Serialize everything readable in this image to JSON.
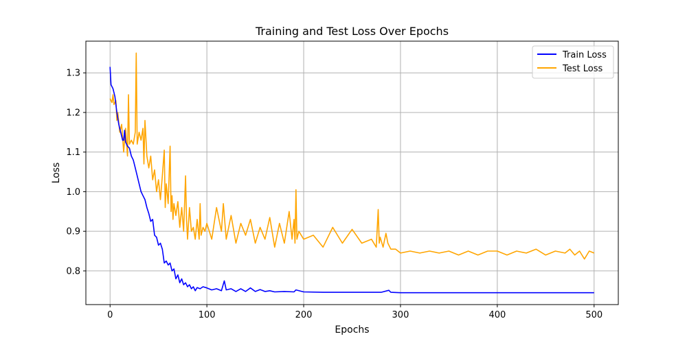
{
  "chart_data": {
    "type": "line",
    "title": "Training and Test Loss Over Epochs",
    "xlabel": "Epochs",
    "ylabel": "Loss",
    "xlim": [
      -25,
      525
    ],
    "ylim": [
      0.715,
      1.38
    ],
    "xticks": [
      0,
      100,
      200,
      300,
      400,
      500
    ],
    "yticks": [
      0.8,
      0.9,
      1.0,
      1.1,
      1.2,
      1.3
    ],
    "xtick_labels": [
      "0",
      "100",
      "200",
      "300",
      "400",
      "500"
    ],
    "ytick_labels": [
      "0.8",
      "0.9",
      "1.0",
      "1.1",
      "1.2",
      "1.3"
    ],
    "grid": true,
    "legend_position": "top-right",
    "series": [
      {
        "name": "Train Loss",
        "color": "#0000ff",
        "x": [
          0,
          1,
          3,
          5,
          7,
          9,
          11,
          13,
          14,
          15,
          16,
          18,
          20,
          22,
          24,
          26,
          28,
          30,
          32,
          34,
          36,
          38,
          40,
          42,
          44,
          46,
          48,
          50,
          52,
          54,
          56,
          58,
          60,
          62,
          64,
          66,
          68,
          70,
          72,
          74,
          76,
          78,
          80,
          82,
          84,
          86,
          88,
          90,
          93,
          96,
          100,
          105,
          110,
          115,
          118,
          120,
          125,
          130,
          135,
          140,
          145,
          150,
          155,
          160,
          165,
          170,
          180,
          190,
          192,
          200,
          220,
          240,
          260,
          280,
          288,
          290,
          300,
          320,
          350,
          380,
          400,
          420,
          450,
          480,
          500
        ],
        "y": [
          1.315,
          1.27,
          1.26,
          1.24,
          1.2,
          1.17,
          1.15,
          1.13,
          1.13,
          1.155,
          1.125,
          1.115,
          1.11,
          1.09,
          1.08,
          1.06,
          1.04,
          1.02,
          1.0,
          0.99,
          0.98,
          0.96,
          0.945,
          0.925,
          0.93,
          0.89,
          0.885,
          0.865,
          0.87,
          0.855,
          0.82,
          0.825,
          0.815,
          0.82,
          0.8,
          0.805,
          0.78,
          0.79,
          0.77,
          0.78,
          0.765,
          0.77,
          0.76,
          0.765,
          0.755,
          0.76,
          0.75,
          0.758,
          0.755,
          0.76,
          0.757,
          0.752,
          0.755,
          0.75,
          0.775,
          0.752,
          0.755,
          0.748,
          0.755,
          0.748,
          0.757,
          0.748,
          0.753,
          0.748,
          0.75,
          0.747,
          0.748,
          0.747,
          0.752,
          0.747,
          0.746,
          0.746,
          0.746,
          0.746,
          0.751,
          0.746,
          0.745,
          0.745,
          0.745,
          0.745,
          0.745,
          0.745,
          0.745,
          0.745,
          0.745
        ]
      },
      {
        "name": "Test Loss",
        "color": "#ffa500",
        "x": [
          0,
          2,
          3,
          4,
          6,
          7,
          8,
          10,
          12,
          14,
          16,
          18,
          19,
          20,
          22,
          24,
          26,
          27,
          28,
          30,
          32,
          34,
          35,
          36,
          38,
          40,
          42,
          44,
          46,
          48,
          50,
          52,
          54,
          56,
          57,
          58,
          60,
          62,
          63,
          64,
          65,
          66,
          68,
          70,
          72,
          74,
          76,
          78,
          79,
          80,
          82,
          84,
          86,
          88,
          90,
          92,
          93,
          94,
          96,
          98,
          100,
          105,
          110,
          115,
          117,
          120,
          125,
          130,
          135,
          140,
          145,
          150,
          155,
          160,
          165,
          170,
          175,
          180,
          185,
          188,
          190,
          191,
          192,
          193,
          195,
          200,
          210,
          220,
          230,
          240,
          250,
          260,
          270,
          275,
          277,
          278,
          279,
          282,
          285,
          287,
          290,
          295,
          300,
          310,
          320,
          330,
          340,
          350,
          360,
          370,
          380,
          390,
          400,
          410,
          420,
          430,
          440,
          450,
          460,
          470,
          475,
          480,
          485,
          490,
          495,
          500
        ],
        "y": [
          1.235,
          1.225,
          1.245,
          1.22,
          1.23,
          1.18,
          1.2,
          1.15,
          1.17,
          1.1,
          1.16,
          1.09,
          1.245,
          1.12,
          1.13,
          1.12,
          1.15,
          1.35,
          1.12,
          1.15,
          1.13,
          1.16,
          1.07,
          1.18,
          1.09,
          1.06,
          1.09,
          1.03,
          1.055,
          1.0,
          1.03,
          0.98,
          1.04,
          1.105,
          0.96,
          1.02,
          0.97,
          1.115,
          0.95,
          0.99,
          0.93,
          0.97,
          0.94,
          0.975,
          0.91,
          0.96,
          0.9,
          1.04,
          0.93,
          0.88,
          0.96,
          0.9,
          0.91,
          0.88,
          0.93,
          0.88,
          0.97,
          0.89,
          0.91,
          0.9,
          0.92,
          0.88,
          0.96,
          0.9,
          0.97,
          0.88,
          0.94,
          0.87,
          0.92,
          0.89,
          0.93,
          0.87,
          0.91,
          0.88,
          0.935,
          0.86,
          0.92,
          0.87,
          0.95,
          0.88,
          0.93,
          0.87,
          1.005,
          0.88,
          0.9,
          0.88,
          0.89,
          0.86,
          0.91,
          0.87,
          0.905,
          0.87,
          0.88,
          0.86,
          0.955,
          0.87,
          0.885,
          0.86,
          0.895,
          0.87,
          0.855,
          0.855,
          0.845,
          0.85,
          0.845,
          0.85,
          0.845,
          0.85,
          0.84,
          0.85,
          0.84,
          0.85,
          0.85,
          0.84,
          0.85,
          0.845,
          0.855,
          0.84,
          0.85,
          0.845,
          0.855,
          0.84,
          0.85,
          0.83,
          0.85,
          0.845
        ]
      }
    ]
  }
}
